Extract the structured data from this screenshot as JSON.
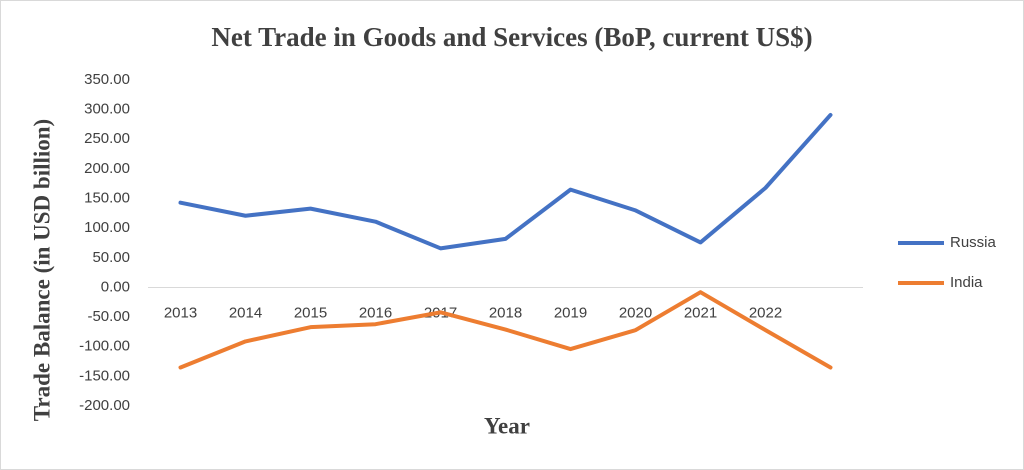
{
  "chart_data": {
    "type": "line",
    "title": "Net Trade in  Goods and Services (BoP, current US$)",
    "x_label": "Year",
    "y_label": "Trade Balance (in USD billion)",
    "categories": [
      "2013",
      "2014",
      "2015",
      "2016",
      "2017",
      "2018",
      "2019",
      "2020",
      "2021",
      "2022",
      null
    ],
    "series": [
      {
        "name": "Russia",
        "color": "#4472c4",
        "values": [
          143,
          121,
          133,
          111,
          66,
          82,
          165,
          130,
          76,
          168,
          291
        ]
      },
      {
        "name": "India",
        "color": "#ed7d31",
        "values": [
          -135,
          -91,
          -67,
          -62,
          -42,
          -71,
          -104,
          -72,
          -8,
          -72,
          -135
        ]
      }
    ],
    "ylim": [
      -200,
      350
    ],
    "yticks": [
      {
        "value": -200,
        "label": "-200.00"
      },
      {
        "value": -150,
        "label": "-150.00"
      },
      {
        "value": -100,
        "label": "-100.00"
      },
      {
        "value": -50,
        "label": "-50.00"
      },
      {
        "value": 0,
        "label": "0.00"
      },
      {
        "value": 50,
        "label": "50.00"
      },
      {
        "value": 100,
        "label": "100.00"
      },
      {
        "value": 150,
        "label": "150.00"
      },
      {
        "value": 200,
        "label": "200.00"
      },
      {
        "value": 250,
        "label": "250.00"
      },
      {
        "value": 300,
        "label": "300.00"
      },
      {
        "value": 350,
        "label": "350.00"
      }
    ],
    "legend": "right"
  }
}
